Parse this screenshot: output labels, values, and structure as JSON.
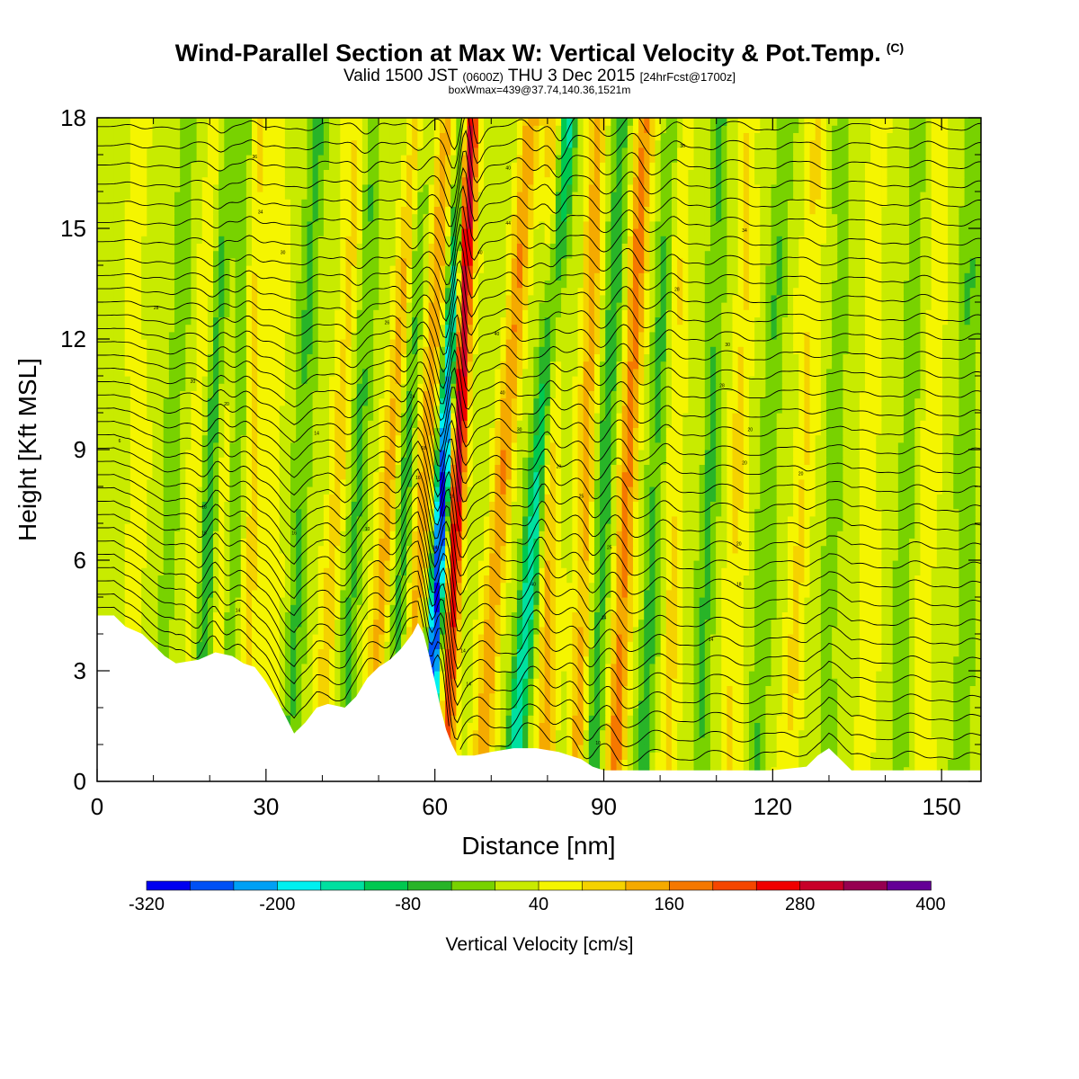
{
  "header": {
    "title": "Wind-Parallel Section at Max W: Vertical Velocity & Pot.Temp.",
    "copyright": "(C)",
    "valid_prefix": "Valid 1500 JST",
    "valid_zulu": "(0600Z)",
    "valid_date": "THU 3 Dec 2015",
    "forecast": "[24hrFcst@1700z]",
    "boxinfo": "boxWmax=439@37.74,140.36,1521m"
  },
  "chart_data": {
    "type": "heatmap",
    "xlabel": "Distance [nm]",
    "ylabel": "Height [Kft MSL]",
    "xlim": [
      0,
      157
    ],
    "ylim": [
      0,
      18
    ],
    "x_ticks": [
      "0",
      "30",
      "60",
      "90",
      "120",
      "150"
    ],
    "x_tick_values": [
      0,
      30,
      60,
      90,
      120,
      150
    ],
    "y_ticks": [
      "0",
      "3",
      "6",
      "9",
      "12",
      "15",
      "18"
    ],
    "y_tick_values": [
      0,
      3,
      6,
      9,
      12,
      15,
      18
    ],
    "colorbar": {
      "title": "Vertical Velocity [cm/s]",
      "min": -320,
      "max": 400,
      "step": 40,
      "labels": [
        "-320",
        "-200",
        "-80",
        "40",
        "160",
        "280",
        "400"
      ],
      "label_values": [
        -320,
        -200,
        -80,
        40,
        160,
        280,
        400
      ],
      "colors": [
        "#0000f0",
        "#0050f5",
        "#00a0f5",
        "#00f0f0",
        "#00e0a0",
        "#00c850",
        "#28b428",
        "#78d200",
        "#c8eb00",
        "#f5f500",
        "#f5d200",
        "#f5aa00",
        "#f57800",
        "#f54600",
        "#f00000",
        "#c80028",
        "#960050",
        "#640096"
      ]
    },
    "terrain": [
      [
        0,
        4.5
      ],
      [
        3,
        4.5
      ],
      [
        5,
        4.2
      ],
      [
        8,
        4.0
      ],
      [
        10,
        3.7
      ],
      [
        12,
        3.4
      ],
      [
        14,
        3.2
      ],
      [
        18,
        3.3
      ],
      [
        21,
        3.5
      ],
      [
        24,
        3.4
      ],
      [
        26,
        3.2
      ],
      [
        28,
        3.1
      ],
      [
        30,
        2.7
      ],
      [
        32,
        2.2
      ],
      [
        34,
        1.6
      ],
      [
        35,
        1.3
      ],
      [
        37,
        1.6
      ],
      [
        39,
        2.0
      ],
      [
        41,
        2.1
      ],
      [
        44,
        2.0
      ],
      [
        46,
        2.3
      ],
      [
        48,
        2.8
      ],
      [
        50,
        3.1
      ],
      [
        52,
        3.3
      ],
      [
        54,
        3.6
      ],
      [
        56,
        4.0
      ],
      [
        57,
        4.3
      ],
      [
        58,
        4.0
      ],
      [
        59,
        3.4
      ],
      [
        60,
        2.7
      ],
      [
        61,
        2.0
      ],
      [
        62,
        1.4
      ],
      [
        63,
        1.0
      ],
      [
        64,
        0.7
      ],
      [
        67,
        0.7
      ],
      [
        70,
        0.8
      ],
      [
        74,
        0.9
      ],
      [
        78,
        0.9
      ],
      [
        82,
        0.8
      ],
      [
        86,
        0.6
      ],
      [
        88,
        0.4
      ],
      [
        90,
        0.3
      ],
      [
        96,
        0.3
      ],
      [
        104,
        0.3
      ],
      [
        112,
        0.3
      ],
      [
        120,
        0.3
      ],
      [
        126,
        0.4
      ],
      [
        128,
        0.7
      ],
      [
        130,
        0.9
      ],
      [
        132,
        0.6
      ],
      [
        134,
        0.3
      ],
      [
        140,
        0.3
      ],
      [
        150,
        0.3
      ],
      [
        157,
        0.3
      ]
    ],
    "updrafts": [
      {
        "x": 7,
        "w": 40,
        "tilt": 0.0
      },
      {
        "x": 17,
        "w": 50,
        "tilt": 0.3
      },
      {
        "x": 21.5,
        "w": 60,
        "tilt": 0.1
      },
      {
        "x": 27,
        "w": 70,
        "tilt": 0.1
      },
      {
        "x": 31,
        "w": 40,
        "tilt": 0.1
      },
      {
        "x": 41,
        "w": 70,
        "tilt": 0.4
      },
      {
        "x": 50,
        "w": 120,
        "tilt": 0.5
      },
      {
        "x": 56.5,
        "w": 120,
        "tilt": 0.4
      },
      {
        "x": 63,
        "w": 300,
        "tilt": 0.25
      },
      {
        "x": 70,
        "w": 130,
        "tilt": 0.5
      },
      {
        "x": 80,
        "w": 110,
        "tilt": 0.1
      },
      {
        "x": 86,
        "w": 110,
        "tilt": 0.2
      },
      {
        "x": 93,
        "w": 150,
        "tilt": 0.3
      },
      {
        "x": 102,
        "w": 60,
        "tilt": 0.1
      },
      {
        "x": 113,
        "w": 60,
        "tilt": 0.2
      },
      {
        "x": 124,
        "w": 60,
        "tilt": 0.3
      },
      {
        "x": 137,
        "w": 40,
        "tilt": 0.1
      },
      {
        "x": 147,
        "w": 40,
        "tilt": 0.2
      }
    ],
    "downdrafts": [
      {
        "x": 12,
        "w": -50,
        "tilt": 0.3
      },
      {
        "x": 19,
        "w": -130,
        "tilt": 0.3
      },
      {
        "x": 24,
        "w": -60,
        "tilt": 0.2
      },
      {
        "x": 35,
        "w": -70,
        "tilt": 0.3
      },
      {
        "x": 45,
        "w": -70,
        "tilt": 0.3
      },
      {
        "x": 53.5,
        "w": -90,
        "tilt": 0.3
      },
      {
        "x": 60,
        "w": -320,
        "tilt": 0.35
      },
      {
        "x": 76,
        "w": -180,
        "tilt": 0.55
      },
      {
        "x": 89,
        "w": -90,
        "tilt": 0.3
      },
      {
        "x": 98,
        "w": -80,
        "tilt": 0.3
      },
      {
        "x": 108,
        "w": -70,
        "tilt": 0.2
      },
      {
        "x": 118,
        "w": -60,
        "tilt": 0.3
      },
      {
        "x": 130,
        "w": -50,
        "tilt": 0.2
      },
      {
        "x": 143,
        "w": -50,
        "tilt": 0.2
      },
      {
        "x": 154,
        "w": -60,
        "tilt": 0.1
      }
    ],
    "contour_labels": [
      {
        "x": 4,
        "y": 9.2,
        "text": "6"
      },
      {
        "x": 10.5,
        "y": 12.8,
        "text": "28"
      },
      {
        "x": 17,
        "y": 10.8,
        "text": "20"
      },
      {
        "x": 23,
        "y": 10.2,
        "text": "20"
      },
      {
        "x": 28,
        "y": 16.9,
        "text": "36"
      },
      {
        "x": 29,
        "y": 15.4,
        "text": "34"
      },
      {
        "x": 33,
        "y": 14.3,
        "text": "30"
      },
      {
        "x": 39,
        "y": 9.4,
        "text": "14"
      },
      {
        "x": 48,
        "y": 6.8,
        "text": "10"
      },
      {
        "x": 51.5,
        "y": 12.4,
        "text": "26"
      },
      {
        "x": 56,
        "y": 10.4,
        "text": "24"
      },
      {
        "x": 58,
        "y": 9.0,
        "text": "18"
      },
      {
        "x": 57,
        "y": 8.2,
        "text": "16"
      },
      {
        "x": 60,
        "y": 6.3,
        "text": "14"
      },
      {
        "x": 63,
        "y": 7.7,
        "text": "16"
      },
      {
        "x": 68,
        "y": 14.3,
        "text": "40"
      },
      {
        "x": 71,
        "y": 12.1,
        "text": "40"
      },
      {
        "x": 72,
        "y": 10.5,
        "text": "40"
      },
      {
        "x": 73,
        "y": 16.6,
        "text": "40"
      },
      {
        "x": 73,
        "y": 15.1,
        "text": "44"
      },
      {
        "x": 75,
        "y": 9.5,
        "text": "30"
      },
      {
        "x": 77.5,
        "y": 5.3,
        "text": "40"
      },
      {
        "x": 82,
        "y": 8.5,
        "text": "20"
      },
      {
        "x": 86,
        "y": 7.7,
        "text": "25"
      },
      {
        "x": 91,
        "y": 6.3,
        "text": "25"
      },
      {
        "x": 90,
        "y": 4.4,
        "text": "14"
      },
      {
        "x": 89,
        "y": 1.0,
        "text": "10"
      },
      {
        "x": 104,
        "y": 17.2,
        "text": "36"
      },
      {
        "x": 103,
        "y": 13.3,
        "text": "28"
      },
      {
        "x": 112,
        "y": 11.8,
        "text": "30"
      },
      {
        "x": 111,
        "y": 10.7,
        "text": "28"
      },
      {
        "x": 116,
        "y": 9.5,
        "text": "20"
      },
      {
        "x": 115,
        "y": 8.6,
        "text": "20"
      },
      {
        "x": 114,
        "y": 6.4,
        "text": "20"
      },
      {
        "x": 114,
        "y": 5.3,
        "text": "18"
      },
      {
        "x": 109,
        "y": 3.8,
        "text": "14"
      },
      {
        "x": 125,
        "y": 8.3,
        "text": "20"
      },
      {
        "x": 115,
        "y": 14.9,
        "text": "34"
      },
      {
        "x": 25,
        "y": 4.6,
        "text": "14"
      },
      {
        "x": 35,
        "y": 6.7,
        "text": "16"
      },
      {
        "x": 19,
        "y": 7.4,
        "text": "18"
      },
      {
        "x": 19,
        "y": 6.7,
        "text": "16"
      },
      {
        "x": 65,
        "y": 3.5,
        "text": "14"
      },
      {
        "x": 66,
        "y": 2.6,
        "text": "14"
      }
    ]
  }
}
